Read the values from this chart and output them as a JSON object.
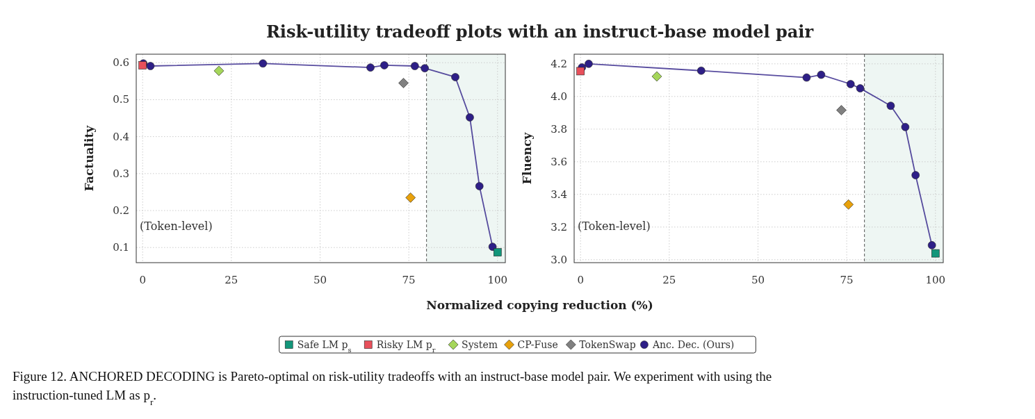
{
  "chart_data": [
    {
      "type": "line",
      "title": "Risk-utility tradeoff plots with an instruct-base model pair",
      "xlabel": "Normalized copying reduction (%)",
      "ylabel": "Factuality",
      "xlim": [
        -1.8,
        102.2
      ],
      "xticks": [
        0,
        25,
        50,
        75,
        100
      ],
      "ylim": [
        0.059,
        0.623
      ],
      "yticks": [
        0.1,
        0.2,
        0.3,
        0.4,
        0.5,
        0.6
      ],
      "grid": true,
      "legend": "bottom",
      "ref_lines": [
        {
          "axis": "x",
          "value": 80,
          "color": "#555555",
          "line_style": "dashed"
        }
      ],
      "bands": [
        {
          "axis": "x",
          "from": 80,
          "to": 102.2,
          "color": "#eef6f3"
        }
      ],
      "annotations": [
        "(Token-level)",
        "Figure 12. ANCHORED DECODING is Pareto-optimal on risk-utility tradeoffs with an instruct-base model pair. We experiment with using the instruction-tuned LM as p$_{r}$."
      ],
      "series": [
        {
          "name": "Safe LM p$_{s}$",
          "type": "scatter",
          "marker": "square",
          "color": "#12967a",
          "x": [
            100
          ],
          "values": [
            0.087
          ]
        },
        {
          "name": "Risky LM p$_{r}$",
          "type": "scatter",
          "marker": "square",
          "color": "#e8505b",
          "x": [
            0
          ],
          "values": [
            0.593
          ]
        },
        {
          "name": "System",
          "type": "scatter",
          "marker": "diamond",
          "color": "#a5d65a",
          "x": [
            21.5
          ],
          "values": [
            0.578
          ]
        },
        {
          "name": "CP-Fuse",
          "type": "scatter",
          "marker": "diamond",
          "color": "#e8a10c",
          "x": [
            75.5
          ],
          "values": [
            0.235
          ]
        },
        {
          "name": "TokenSwap",
          "type": "scatter",
          "marker": "diamond",
          "color": "#808080",
          "x": [
            73.5
          ],
          "values": [
            0.545
          ]
        },
        {
          "name": "Anc. Dec. (Ours)",
          "type": "line",
          "marker": "circle",
          "color": "#2e1f87",
          "x": [
            0.2,
            2.2,
            33.9,
            64.2,
            68.1,
            76.7,
            79.5,
            88.1,
            92.2,
            94.9,
            98.6
          ],
          "values": [
            0.598,
            0.591,
            0.598,
            0.587,
            0.593,
            0.591,
            0.585,
            0.561,
            0.452,
            0.266,
            0.102
          ]
        }
      ]
    },
    {
      "type": "line",
      "ylabel": "Fluency",
      "xlim": [
        -1.8,
        102.2
      ],
      "xticks": [
        0,
        25,
        50,
        75,
        100
      ],
      "ylim": [
        2.982,
        4.259
      ],
      "yticks": [
        {
          "value": 3.0,
          "label": "3.0"
        },
        3.2,
        3.4,
        3.6,
        3.8,
        {
          "value": 4.0,
          "label": "4.0"
        },
        4.2
      ],
      "grid": true,
      "ref_lines": [
        {
          "axis": "x",
          "value": 80,
          "color": "#555555",
          "line_style": "dashed"
        }
      ],
      "bands": [
        {
          "axis": "x",
          "from": 80,
          "to": 102.2,
          "color": "#eef6f3"
        }
      ],
      "annotations": [
        "(Token-level)"
      ],
      "series": [
        {
          "type": "scatter",
          "marker": "square",
          "color": "#12967a",
          "x": [
            100
          ],
          "values": [
            3.039
          ]
        },
        {
          "type": "scatter",
          "marker": "square",
          "color": "#e8505b",
          "x": [
            0
          ],
          "values": [
            4.155
          ]
        },
        {
          "type": "scatter",
          "marker": "diamond",
          "color": "#a5d65a",
          "x": [
            21.5
          ],
          "values": [
            4.123
          ]
        },
        {
          "type": "scatter",
          "marker": "diamond",
          "color": "#e8a10c",
          "x": [
            75.5
          ],
          "values": [
            3.338
          ]
        },
        {
          "type": "scatter",
          "marker": "diamond",
          "color": "#808080",
          "x": [
            73.5
          ],
          "values": [
            3.916
          ]
        },
        {
          "type": "line",
          "marker": "circle",
          "color": "#2e1f87",
          "x": [
            0.4,
            2.3,
            34,
            63.7,
            67.8,
            76.1,
            78.8,
            87.4,
            91.5,
            94.4,
            99.0
          ],
          "values": [
            4.178,
            4.2,
            4.158,
            4.116,
            4.133,
            4.076,
            4.05,
            3.943,
            3.813,
            3.518,
            3.089
          ]
        }
      ]
    }
  ]
}
